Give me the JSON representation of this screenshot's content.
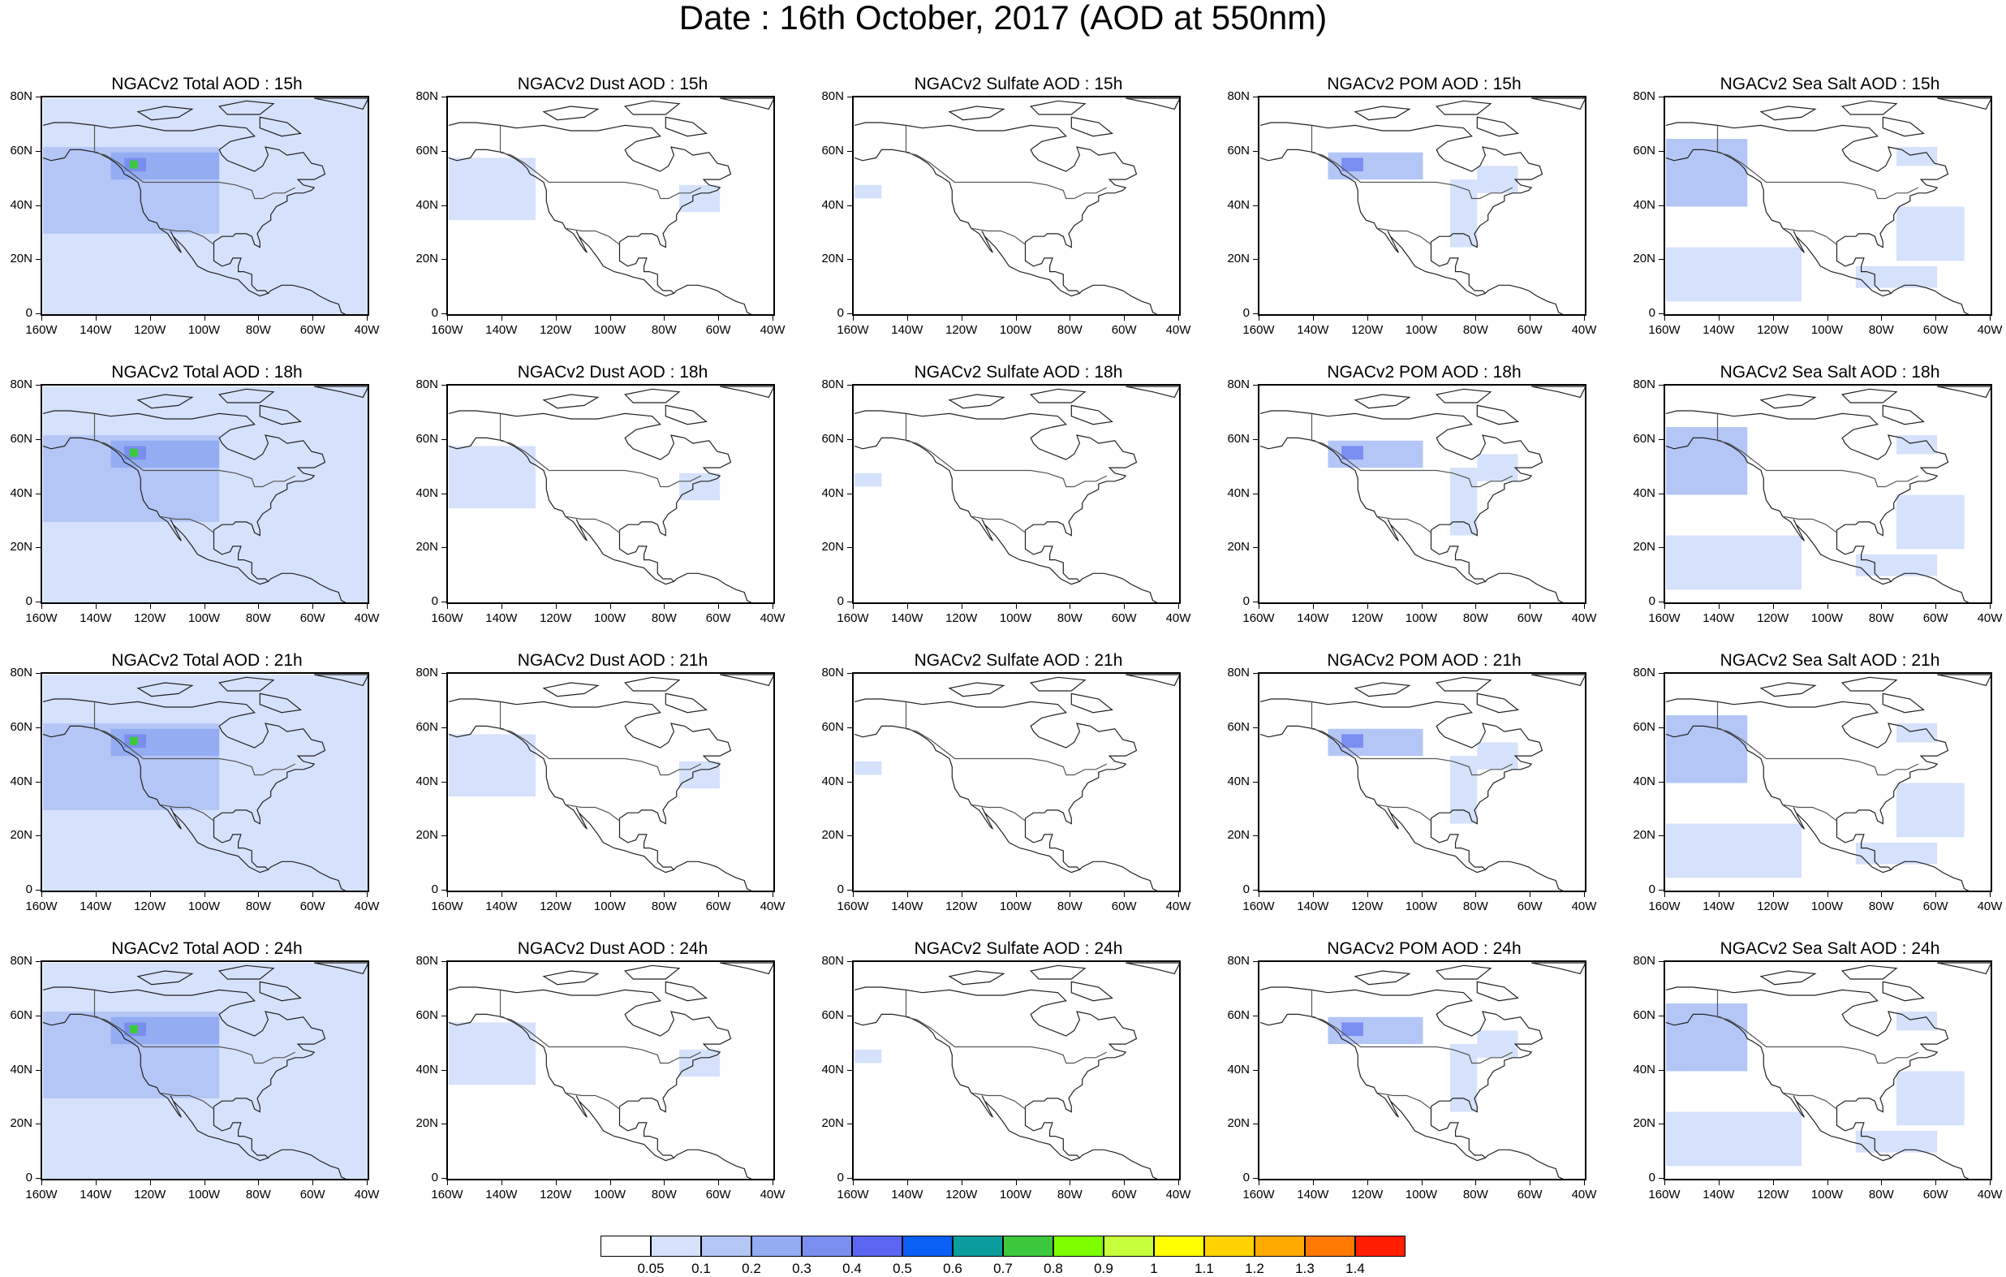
{
  "title": "Date : 16th October, 2017 (AOD at 550nm)",
  "lat_labels": [
    "80N",
    "60N",
    "40N",
    "20N",
    "0"
  ],
  "lon_labels": [
    "160W",
    "140W",
    "120W",
    "100W",
    "80W",
    "60W",
    "40W"
  ],
  "colorbar": {
    "labels": [
      "0.05",
      "0.1",
      "0.2",
      "0.3",
      "0.4",
      "0.5",
      "0.6",
      "0.7",
      "0.8",
      "0.9",
      "1",
      "1.1",
      "1.2",
      "1.3",
      "1.4"
    ],
    "colors": [
      "#ffffff",
      "#d6e1fb",
      "#b4c6f6",
      "#93acf2",
      "#7a8ef0",
      "#5a66f2",
      "#0a5ff5",
      "#0b9d9d",
      "#3cc83c",
      "#7dff00",
      "#c8ff3c",
      "#ffff00",
      "#ffd200",
      "#ffaa00",
      "#ff7800",
      "#ff1e00"
    ]
  },
  "panels": [
    {
      "title": "NGACv2 Total AOD : 15h",
      "species": "total",
      "hour": 15
    },
    {
      "title": "NGACv2 Dust AOD : 15h",
      "species": "dust",
      "hour": 15
    },
    {
      "title": "NGACv2 Sulfate AOD : 15h",
      "species": "sulfate",
      "hour": 15
    },
    {
      "title": "NGACv2 POM AOD : 15h",
      "species": "pom",
      "hour": 15
    },
    {
      "title": "NGACv2 Sea Salt AOD : 15h",
      "species": "seasalt",
      "hour": 15
    },
    {
      "title": "NGACv2 Total AOD : 18h",
      "species": "total",
      "hour": 18
    },
    {
      "title": "NGACv2 Dust AOD : 18h",
      "species": "dust",
      "hour": 18
    },
    {
      "title": "NGACv2 Sulfate AOD : 18h",
      "species": "sulfate",
      "hour": 18
    },
    {
      "title": "NGACv2 POM AOD : 18h",
      "species": "pom",
      "hour": 18
    },
    {
      "title": "NGACv2 Sea Salt AOD : 18h",
      "species": "seasalt",
      "hour": 18
    },
    {
      "title": "NGACv2 Total AOD : 21h",
      "species": "total",
      "hour": 21
    },
    {
      "title": "NGACv2 Dust AOD : 21h",
      "species": "dust",
      "hour": 21
    },
    {
      "title": "NGACv2 Sulfate AOD : 21h",
      "species": "sulfate",
      "hour": 21
    },
    {
      "title": "NGACv2 POM AOD : 21h",
      "species": "pom",
      "hour": 21
    },
    {
      "title": "NGACv2 Sea Salt AOD : 21h",
      "species": "seasalt",
      "hour": 21
    },
    {
      "title": "NGACv2 Total AOD : 24h",
      "species": "total",
      "hour": 24
    },
    {
      "title": "NGACv2 Dust AOD : 24h",
      "species": "dust",
      "hour": 24
    },
    {
      "title": "NGACv2 Sulfate AOD : 24h",
      "species": "sulfate",
      "hour": 24
    },
    {
      "title": "NGACv2 POM AOD : 24h",
      "species": "pom",
      "hour": 24
    },
    {
      "title": "NGACv2 Sea Salt  AOD : 24h",
      "species": "seasalt",
      "hour": 24
    }
  ]
}
